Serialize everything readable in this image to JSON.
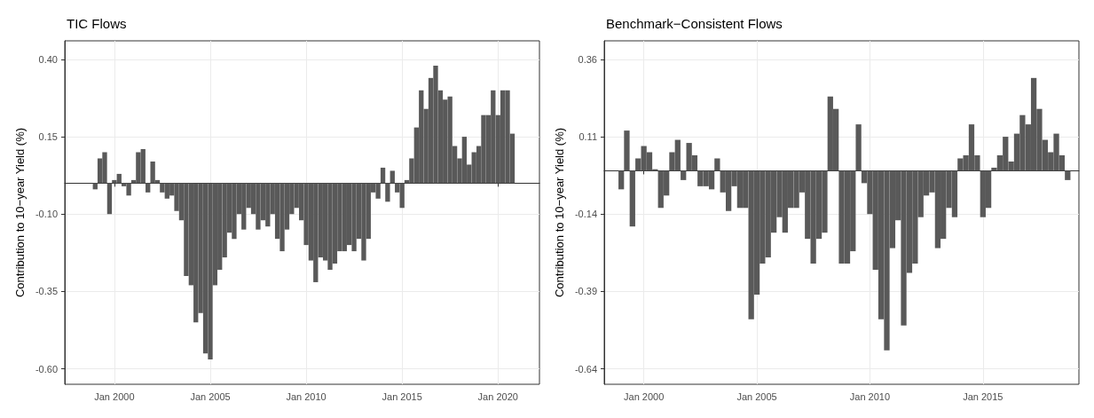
{
  "chart_data": [
    {
      "type": "bar",
      "title": "TIC Flows",
      "ylabel": "Contribution to 10−year Yield (%)",
      "x": [
        "1999-01",
        "1999-04",
        "1999-07",
        "1999-10",
        "2000-01",
        "2000-04",
        "2000-07",
        "2000-10",
        "2001-01",
        "2001-04",
        "2001-07",
        "2001-10",
        "2002-01",
        "2002-04",
        "2002-07",
        "2002-10",
        "2003-01",
        "2003-04",
        "2003-07",
        "2003-10",
        "2004-01",
        "2004-04",
        "2004-07",
        "2004-10",
        "2005-01",
        "2005-04",
        "2005-07",
        "2005-10",
        "2006-01",
        "2006-04",
        "2006-07",
        "2006-10",
        "2007-01",
        "2007-04",
        "2007-07",
        "2007-10",
        "2008-01",
        "2008-04",
        "2008-07",
        "2008-10",
        "2009-01",
        "2009-04",
        "2009-07",
        "2009-10",
        "2010-01",
        "2010-04",
        "2010-07",
        "2010-10",
        "2011-01",
        "2011-04",
        "2011-07",
        "2011-10",
        "2012-01",
        "2012-04",
        "2012-07",
        "2012-10",
        "2013-01",
        "2013-04",
        "2013-07",
        "2013-10",
        "2014-01",
        "2014-04",
        "2014-07",
        "2014-10",
        "2015-01",
        "2015-04",
        "2015-07",
        "2015-10",
        "2016-01",
        "2016-04",
        "2016-07",
        "2016-10",
        "2017-01",
        "2017-04",
        "2017-07",
        "2017-10",
        "2018-01",
        "2018-04",
        "2018-07",
        "2018-10",
        "2019-01",
        "2019-04",
        "2019-07",
        "2019-10",
        "2020-01",
        "2020-04",
        "2020-07",
        "2020-10"
      ],
      "series": [
        {
          "color": "#595959",
          "values": [
            -0.02,
            0.08,
            0.1,
            -0.1,
            0.01,
            0.03,
            -0.01,
            -0.04,
            0.01,
            0.1,
            0.11,
            -0.03,
            0.07,
            0.01,
            -0.03,
            -0.05,
            -0.04,
            -0.09,
            -0.12,
            -0.3,
            -0.33,
            -0.45,
            -0.42,
            -0.55,
            -0.57,
            -0.33,
            -0.28,
            -0.24,
            -0.16,
            -0.18,
            -0.1,
            -0.15,
            -0.08,
            -0.1,
            -0.15,
            -0.12,
            -0.14,
            -0.1,
            -0.18,
            -0.22,
            -0.15,
            -0.1,
            -0.08,
            -0.12,
            -0.2,
            -0.25,
            -0.32,
            -0.24,
            -0.25,
            -0.28,
            -0.26,
            -0.22,
            -0.22,
            -0.2,
            -0.22,
            -0.18,
            -0.25,
            -0.18,
            -0.03,
            -0.05,
            0.05,
            -0.06,
            0.04,
            -0.03,
            -0.08,
            0.01,
            0.08,
            0.18,
            0.3,
            0.24,
            0.34,
            0.38,
            0.3,
            0.27,
            0.28,
            0.12,
            0.08,
            0.15,
            0.06,
            0.1,
            0.12,
            0.22,
            0.22,
            0.3,
            0.22,
            0.3,
            0.3,
            0.16
          ]
        }
      ],
      "xlim": [
        "1997-06",
        "2022-03"
      ],
      "xticks": [
        {
          "value": "2000-01",
          "label": "Jan 2000"
        },
        {
          "value": "2005-01",
          "label": "Jan 2005"
        },
        {
          "value": "2010-01",
          "label": "Jan 2010"
        },
        {
          "value": "2015-01",
          "label": "Jan 2015"
        },
        {
          "value": "2020-01",
          "label": "Jan 2020"
        }
      ],
      "ylim": [
        -0.65,
        0.46
      ],
      "yticks": [
        {
          "value": -0.6,
          "label": "-0.60"
        },
        {
          "value": -0.35,
          "label": "-0.35"
        },
        {
          "value": -0.1,
          "label": "-0.10"
        },
        {
          "value": 0.15,
          "label": "0.15"
        },
        {
          "value": 0.4,
          "label": "0.40"
        }
      ],
      "grid": true
    },
    {
      "type": "bar",
      "title": "Benchmark−Consistent Flows",
      "ylabel": "Contribution to 10−year Yield (%)",
      "x": [
        "1999-01",
        "1999-04",
        "1999-07",
        "1999-10",
        "2000-01",
        "2000-04",
        "2000-07",
        "2000-10",
        "2001-01",
        "2001-04",
        "2001-07",
        "2001-10",
        "2002-01",
        "2002-04",
        "2002-07",
        "2002-10",
        "2003-01",
        "2003-04",
        "2003-07",
        "2003-10",
        "2004-01",
        "2004-04",
        "2004-07",
        "2004-10",
        "2005-01",
        "2005-04",
        "2005-07",
        "2005-10",
        "2006-01",
        "2006-04",
        "2006-07",
        "2006-10",
        "2007-01",
        "2007-04",
        "2007-07",
        "2007-10",
        "2008-01",
        "2008-04",
        "2008-07",
        "2008-10",
        "2009-01",
        "2009-04",
        "2009-07",
        "2009-10",
        "2010-01",
        "2010-04",
        "2010-07",
        "2010-10",
        "2011-01",
        "2011-04",
        "2011-07",
        "2011-10",
        "2012-01",
        "2012-04",
        "2012-07",
        "2012-10",
        "2013-01",
        "2013-04",
        "2013-07",
        "2013-10",
        "2014-01",
        "2014-04",
        "2014-07",
        "2014-10",
        "2015-01",
        "2015-04",
        "2015-07",
        "2015-10",
        "2016-01",
        "2016-04",
        "2016-07",
        "2016-10",
        "2017-01",
        "2017-04",
        "2017-07",
        "2017-10",
        "2018-01",
        "2018-04",
        "2018-07",
        "2018-10"
      ],
      "series": [
        {
          "color": "#595959",
          "values": [
            -0.06,
            0.13,
            -0.18,
            0.04,
            0.08,
            0.06,
            0.005,
            -0.12,
            -0.08,
            0.06,
            0.1,
            -0.03,
            0.09,
            0.05,
            -0.05,
            -0.05,
            -0.06,
            0.04,
            -0.07,
            -0.13,
            -0.05,
            -0.12,
            -0.12,
            -0.48,
            -0.4,
            -0.3,
            -0.28,
            -0.2,
            -0.15,
            -0.2,
            -0.12,
            -0.12,
            -0.07,
            -0.22,
            -0.3,
            -0.22,
            -0.2,
            0.24,
            0.2,
            -0.3,
            -0.3,
            -0.26,
            0.15,
            -0.04,
            -0.14,
            -0.32,
            -0.48,
            -0.58,
            -0.25,
            -0.16,
            -0.5,
            -0.33,
            -0.3,
            -0.15,
            -0.08,
            -0.07,
            -0.25,
            -0.22,
            -0.12,
            -0.15,
            0.04,
            0.05,
            0.15,
            0.05,
            -0.15,
            -0.12,
            0.01,
            0.05,
            0.11,
            0.03,
            0.12,
            0.18,
            0.15,
            0.3,
            0.2,
            0.1,
            0.06,
            0.12,
            0.05,
            -0.03
          ]
        }
      ],
      "xlim": [
        "1998-04",
        "2019-04"
      ],
      "xticks": [
        {
          "value": "2000-01",
          "label": "Jan 2000"
        },
        {
          "value": "2005-01",
          "label": "Jan 2005"
        },
        {
          "value": "2010-01",
          "label": "Jan 2010"
        },
        {
          "value": "2015-01",
          "label": "Jan 2015"
        }
      ],
      "ylim": [
        -0.69,
        0.42
      ],
      "yticks": [
        -0.64,
        -0.39,
        -0.14,
        0.11,
        0.36
      ],
      "grid": true
    }
  ]
}
